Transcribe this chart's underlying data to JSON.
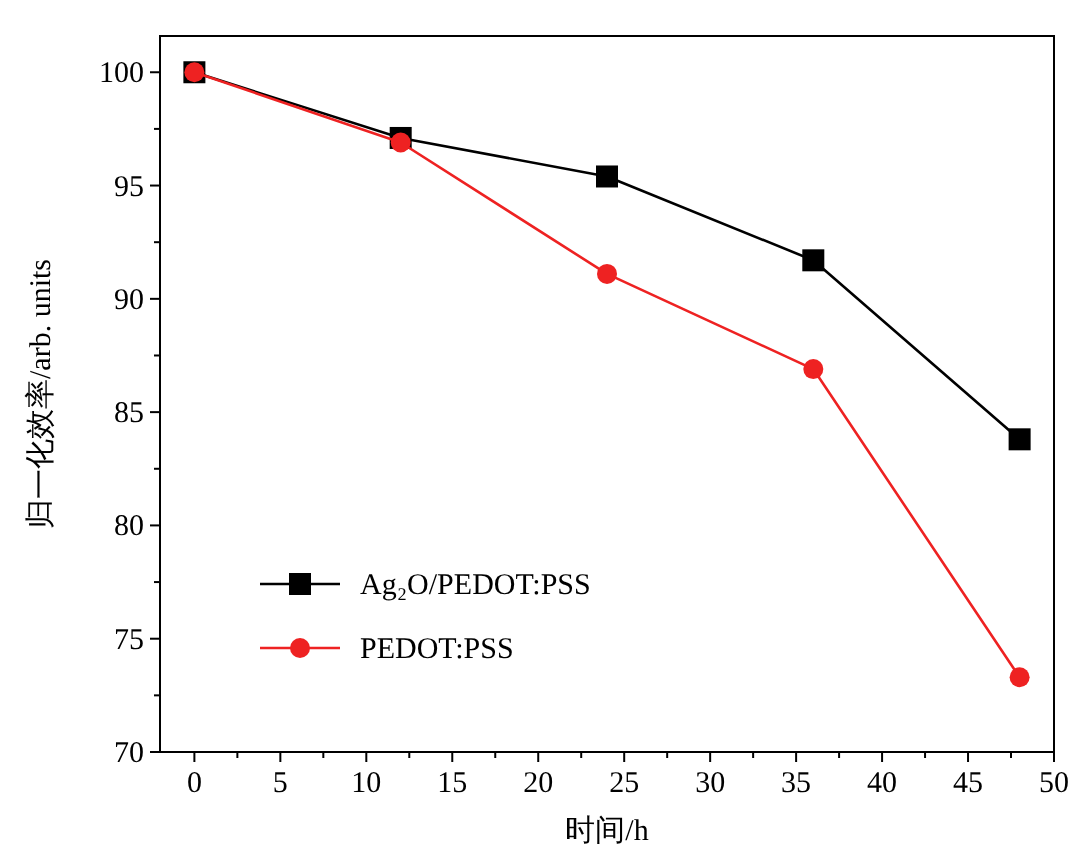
{
  "chart_data": {
    "type": "line",
    "xlabel": "时间/h",
    "ylabel": "归一化效率/arb. units",
    "x": [
      0,
      12,
      24,
      36,
      48
    ],
    "series": [
      {
        "name": "Ag₂O/PEDOT:PSS",
        "color": "#000000",
        "marker": "square",
        "values": [
          100,
          97.1,
          95.4,
          91.7,
          83.8
        ]
      },
      {
        "name": "PEDOT:PSS",
        "color": "#ee2222",
        "marker": "circle",
        "values": [
          100,
          96.9,
          91.1,
          86.9,
          73.3
        ]
      }
    ],
    "xlim": [
      -2,
      50
    ],
    "xticks": [
      0,
      5,
      10,
      15,
      20,
      25,
      30,
      35,
      40,
      45,
      50
    ],
    "ylim": [
      70,
      101.6
    ],
    "yticks": [
      70,
      75,
      80,
      85,
      90,
      95,
      100
    ],
    "grid": false,
    "legend": "bottom left",
    "line_style": "solid"
  }
}
